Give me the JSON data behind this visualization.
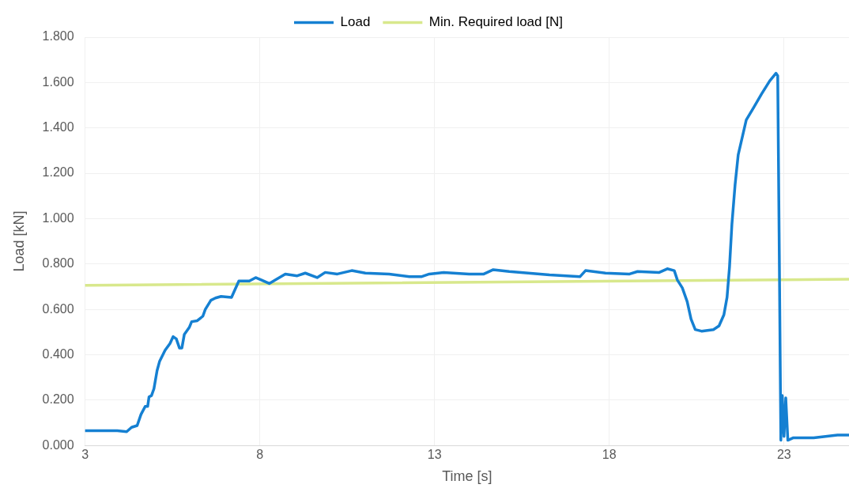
{
  "chart_data": {
    "type": "line",
    "xlabel": "Time [s]",
    "ylabel": "Load [kN]",
    "legend": "top",
    "grid": true,
    "marker": "none",
    "line_style": "solid",
    "xlim": [
      3,
      24.86
    ],
    "xticks": [
      3,
      8,
      13,
      18,
      23
    ],
    "ylim": [
      0,
      1.8
    ],
    "yticks": [
      {
        "value": 0,
        "label": "0.000"
      },
      {
        "value": 0.2,
        "label": "0.200"
      },
      {
        "value": 0.4,
        "label": "0.400"
      },
      {
        "value": 0.6,
        "label": "0.600"
      },
      {
        "value": 0.8,
        "label": "0.800"
      },
      {
        "value": 1,
        "label": "1.000"
      },
      {
        "value": 1.2,
        "label": "1.200"
      },
      {
        "value": 1.4,
        "label": "1.400"
      },
      {
        "value": 1.6,
        "label": "1.600"
      },
      {
        "value": 1.8,
        "label": "1.800"
      }
    ],
    "series": [
      {
        "name": "Load",
        "color": "#1580d2",
        "x": [
          3,
          3.92,
          4.19,
          4.33,
          4.49,
          4.6,
          4.72,
          4.79,
          4.83,
          4.9,
          4.97,
          5.06,
          5.13,
          5.29,
          5.43,
          5.52,
          5.61,
          5.7,
          5.77,
          5.84,
          5.98,
          6.05,
          6.21,
          6.37,
          6.44,
          6.6,
          6.73,
          6.89,
          7.19,
          7.24,
          7.4,
          7.7,
          7.88,
          8.04,
          8.27,
          8.45,
          8.73,
          9.07,
          9.3,
          9.64,
          9.87,
          10.22,
          10.63,
          11.02,
          11.7,
          12.28,
          12.62,
          12.85,
          13.26,
          13.99,
          14.41,
          14.68,
          15.14,
          16.29,
          17.16,
          17.32,
          17.89,
          18.58,
          18.81,
          19.43,
          19.66,
          19.86,
          19.95,
          20.09,
          20.23,
          20.34,
          20.46,
          20.64,
          20.98,
          21.14,
          21.28,
          21.37,
          21.44,
          21.51,
          21.6,
          21.69,
          21.92,
          22.13,
          22.36,
          22.59,
          22.77,
          22.82,
          22.86,
          22.91,
          22.95,
          23.0,
          23.05,
          23.11,
          23.27,
          23.85,
          24.53,
          24.86
        ],
        "values": [
          0.065,
          0.065,
          0.061,
          0.08,
          0.088,
          0.137,
          0.172,
          0.172,
          0.214,
          0.22,
          0.25,
          0.33,
          0.37,
          0.42,
          0.45,
          0.48,
          0.47,
          0.43,
          0.43,
          0.49,
          0.52,
          0.546,
          0.55,
          0.57,
          0.6,
          0.64,
          0.65,
          0.657,
          0.653,
          0.67,
          0.725,
          0.725,
          0.74,
          0.73,
          0.714,
          0.73,
          0.756,
          0.748,
          0.76,
          0.74,
          0.763,
          0.756,
          0.771,
          0.76,
          0.756,
          0.744,
          0.744,
          0.756,
          0.763,
          0.756,
          0.756,
          0.775,
          0.767,
          0.752,
          0.744,
          0.771,
          0.76,
          0.756,
          0.767,
          0.763,
          0.779,
          0.771,
          0.729,
          0.695,
          0.634,
          0.557,
          0.511,
          0.504,
          0.511,
          0.527,
          0.576,
          0.653,
          0.786,
          0.977,
          1.149,
          1.282,
          1.435,
          1.489,
          1.55,
          1.607,
          1.641,
          1.63,
          0.94,
          0.023,
          0.22,
          0.04,
          0.21,
          0.023,
          0.034,
          0.034,
          0.046,
          0.046
        ]
      },
      {
        "name": "Min. Required load [N]",
        "color": "#d8e88c",
        "x": [
          3,
          24.86
        ],
        "values": [
          0.706,
          0.733
        ]
      }
    ]
  }
}
